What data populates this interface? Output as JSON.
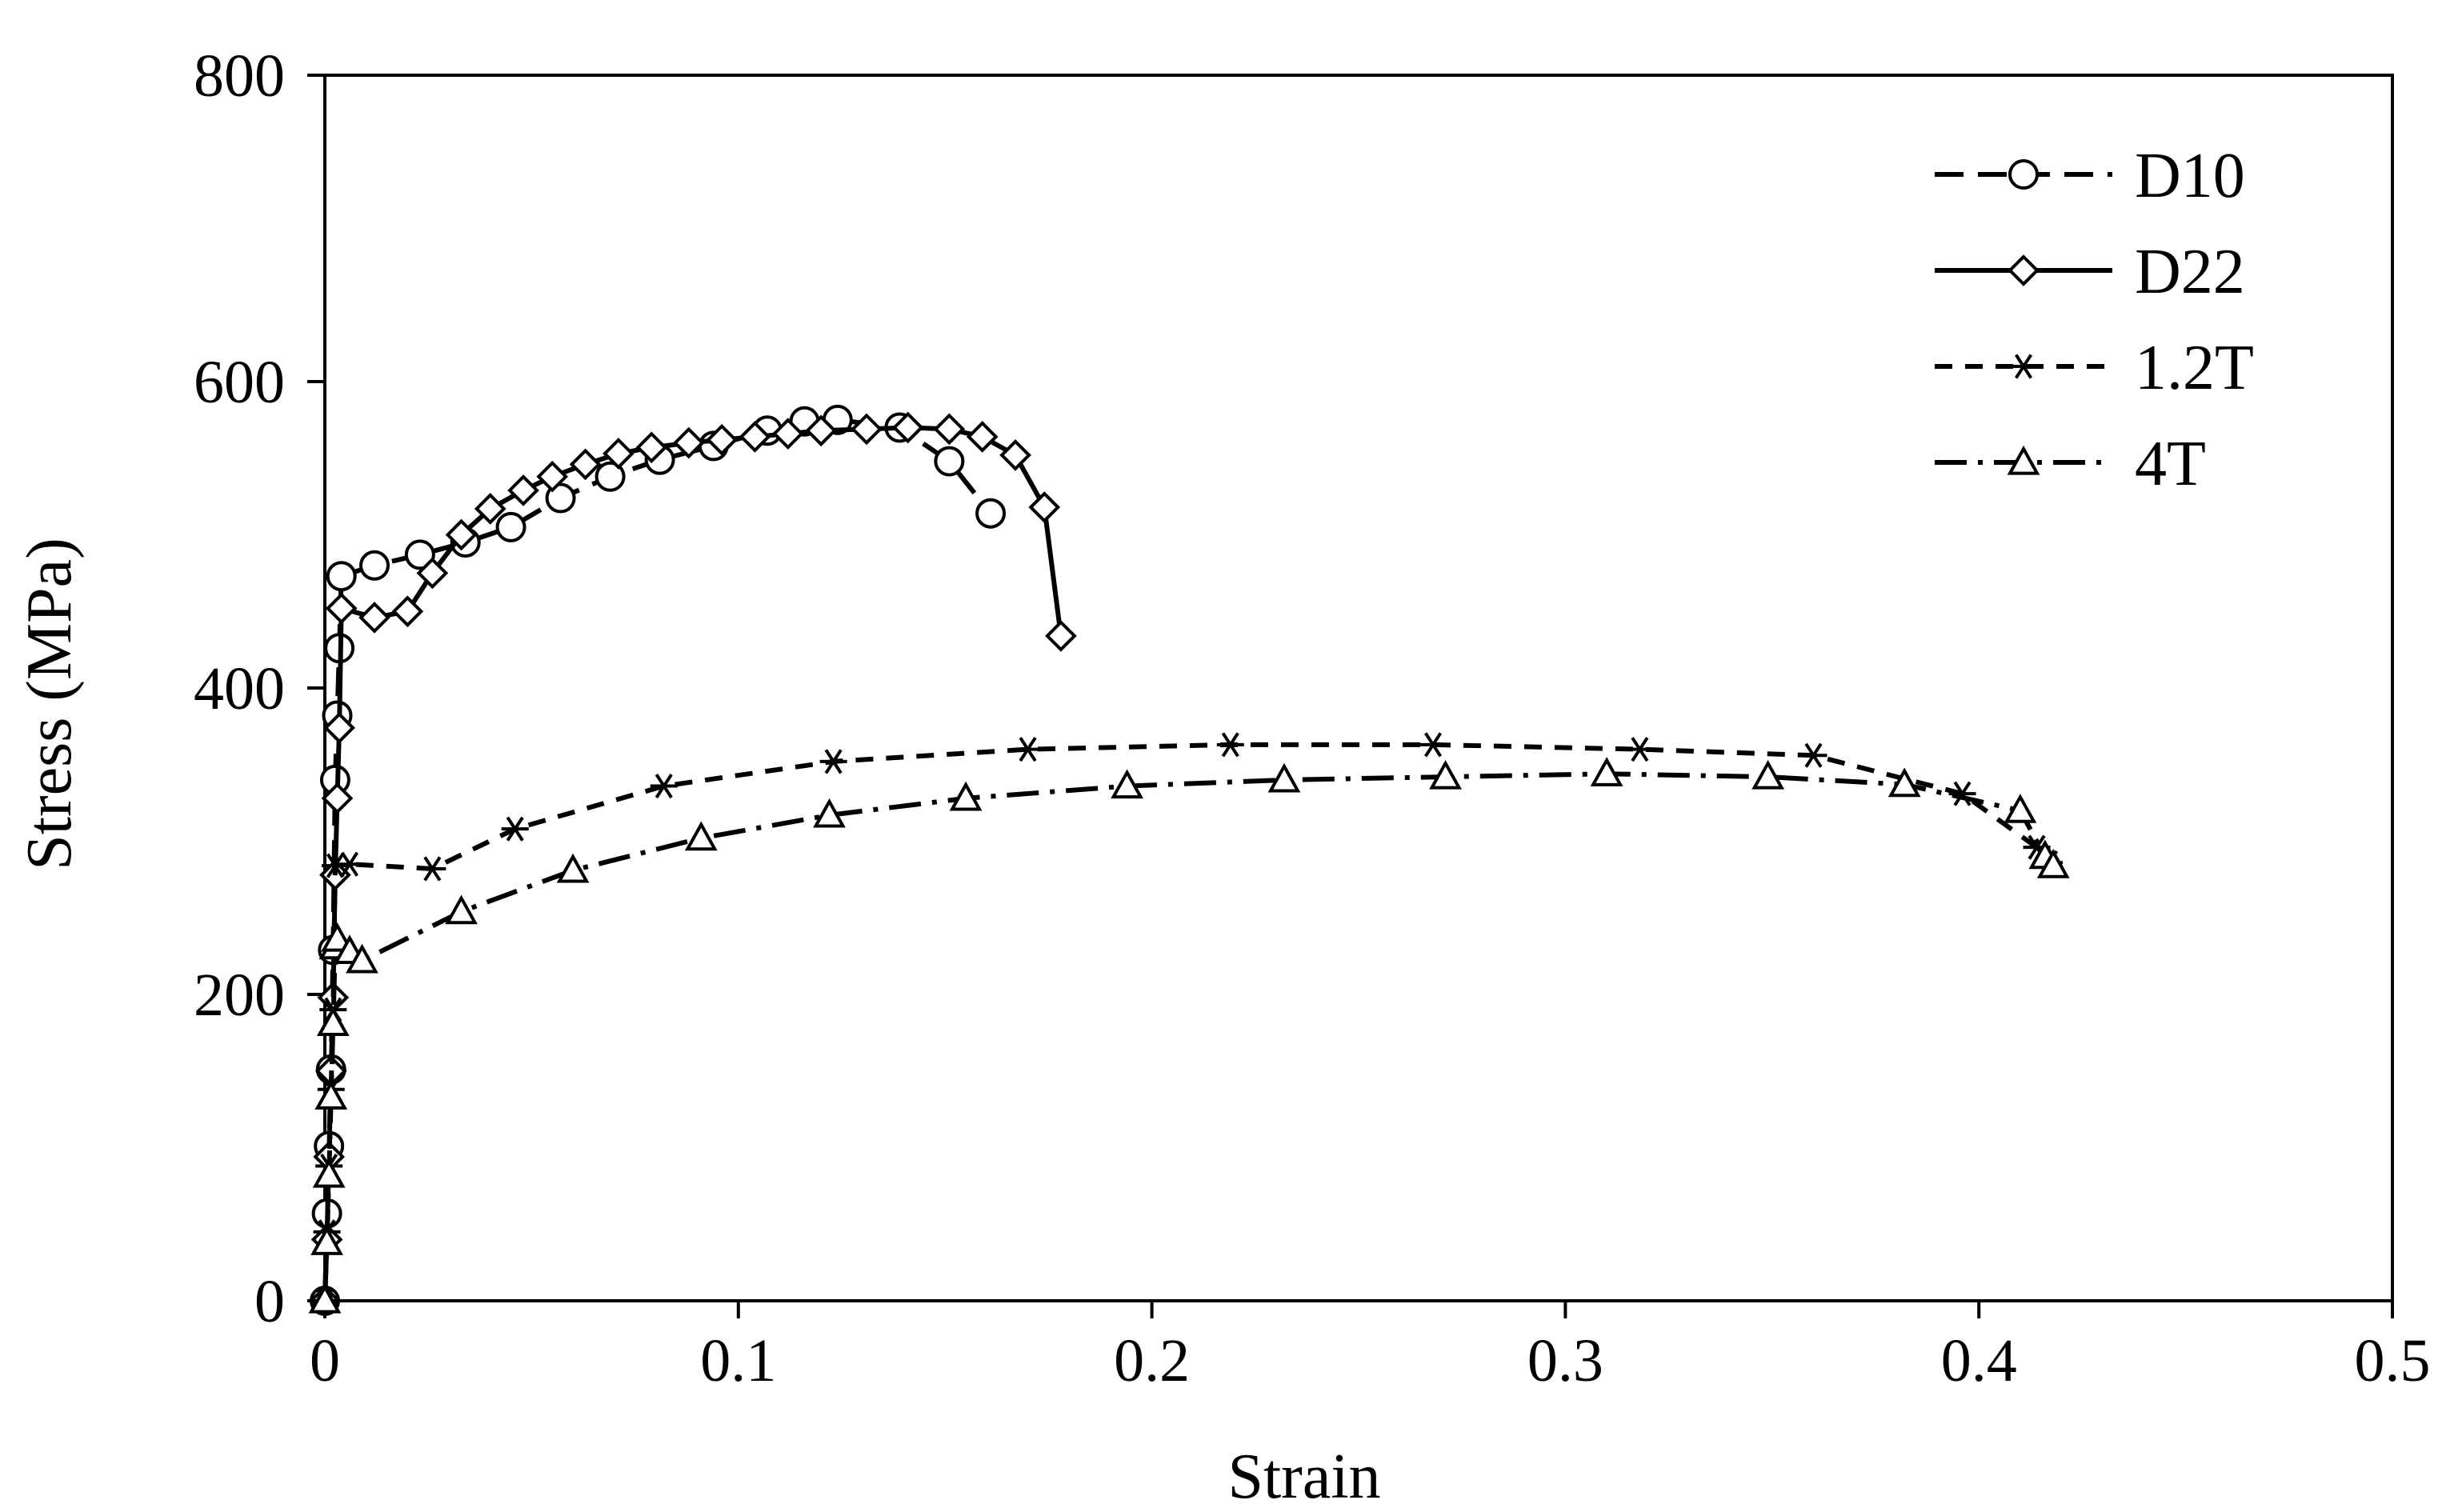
{
  "chart_data": {
    "type": "line",
    "title": "",
    "xlabel": "Strain",
    "ylabel": "Stress (MPa)",
    "xlim": [
      0,
      0.5
    ],
    "ylim": [
      0,
      800
    ],
    "xticks": [
      0,
      0.1,
      0.2,
      0.3,
      0.4,
      0.5
    ],
    "xtick_labels": [
      "0",
      "0.1",
      "0.2",
      "0.3",
      "0.4",
      "0.5"
    ],
    "yticks": [
      0,
      200,
      400,
      600,
      800
    ],
    "ytick_labels": [
      "0",
      "200",
      "400",
      "600",
      "800"
    ],
    "grid": false,
    "legend_position": "top-right",
    "series": [
      {
        "name": "D10",
        "marker": "circle",
        "line": "long-dash",
        "x": [
          0,
          0.0005,
          0.001,
          0.0015,
          0.002,
          0.0025,
          0.003,
          0.0035,
          0.004,
          0.012,
          0.023,
          0.034,
          0.045,
          0.057,
          0.069,
          0.081,
          0.094,
          0.107,
          0.116,
          0.124,
          0.139,
          0.151,
          0.161
        ],
        "y": [
          0,
          57,
          101,
          151,
          229,
          340,
          382,
          426,
          473,
          480,
          487,
          495,
          505,
          524,
          538,
          549,
          558,
          568,
          574,
          575,
          570,
          548,
          514
        ]
      },
      {
        "name": "D22",
        "marker": "diamond",
        "line": "solid",
        "x": [
          0,
          0.0005,
          0.001,
          0.0015,
          0.002,
          0.0025,
          0.003,
          0.0035,
          0.004,
          0.012,
          0.02,
          0.026,
          0.033,
          0.04,
          0.048,
          0.055,
          0.063,
          0.071,
          0.079,
          0.088,
          0.096,
          0.104,
          0.112,
          0.12,
          0.131,
          0.141,
          0.151,
          0.159,
          0.167,
          0.174,
          0.178
        ],
        "y": [
          0,
          40,
          94,
          150,
          198,
          278,
          328,
          374,
          452,
          446,
          450,
          475,
          500,
          517,
          529,
          538,
          546,
          553,
          557,
          560,
          562,
          564,
          566,
          568,
          569,
          570,
          569,
          564,
          552,
          518,
          434
        ]
      },
      {
        "name": "1.2T",
        "marker": "asterisk",
        "line": "short-dash",
        "x": [
          0,
          0.0005,
          0.001,
          0.0015,
          0.002,
          0.0025,
          0.006,
          0.026,
          0.046,
          0.082,
          0.123,
          0.17,
          0.219,
          0.268,
          0.318,
          0.36,
          0.396,
          0.414,
          0.417
        ],
        "y": [
          0,
          45,
          88,
          138,
          190,
          284,
          285,
          282,
          308,
          336,
          352,
          360,
          363,
          363,
          360,
          356,
          331,
          296,
          286
        ]
      },
      {
        "name": "4T",
        "marker": "triangle",
        "line": "dash-dot",
        "x": [
          0,
          0.0005,
          0.001,
          0.0015,
          0.002,
          0.0025,
          0.003,
          0.006,
          0.009,
          0.033,
          0.06,
          0.091,
          0.122,
          0.155,
          0.194,
          0.232,
          0.271,
          0.31,
          0.349,
          0.382,
          0.41,
          0.416,
          0.418
        ],
        "y": [
          0,
          38,
          82,
          133,
          181,
          231,
          236,
          228,
          222,
          254,
          281,
          302,
          317,
          328,
          336,
          340,
          342,
          344,
          342,
          337,
          320,
          290,
          284
        ]
      }
    ]
  }
}
